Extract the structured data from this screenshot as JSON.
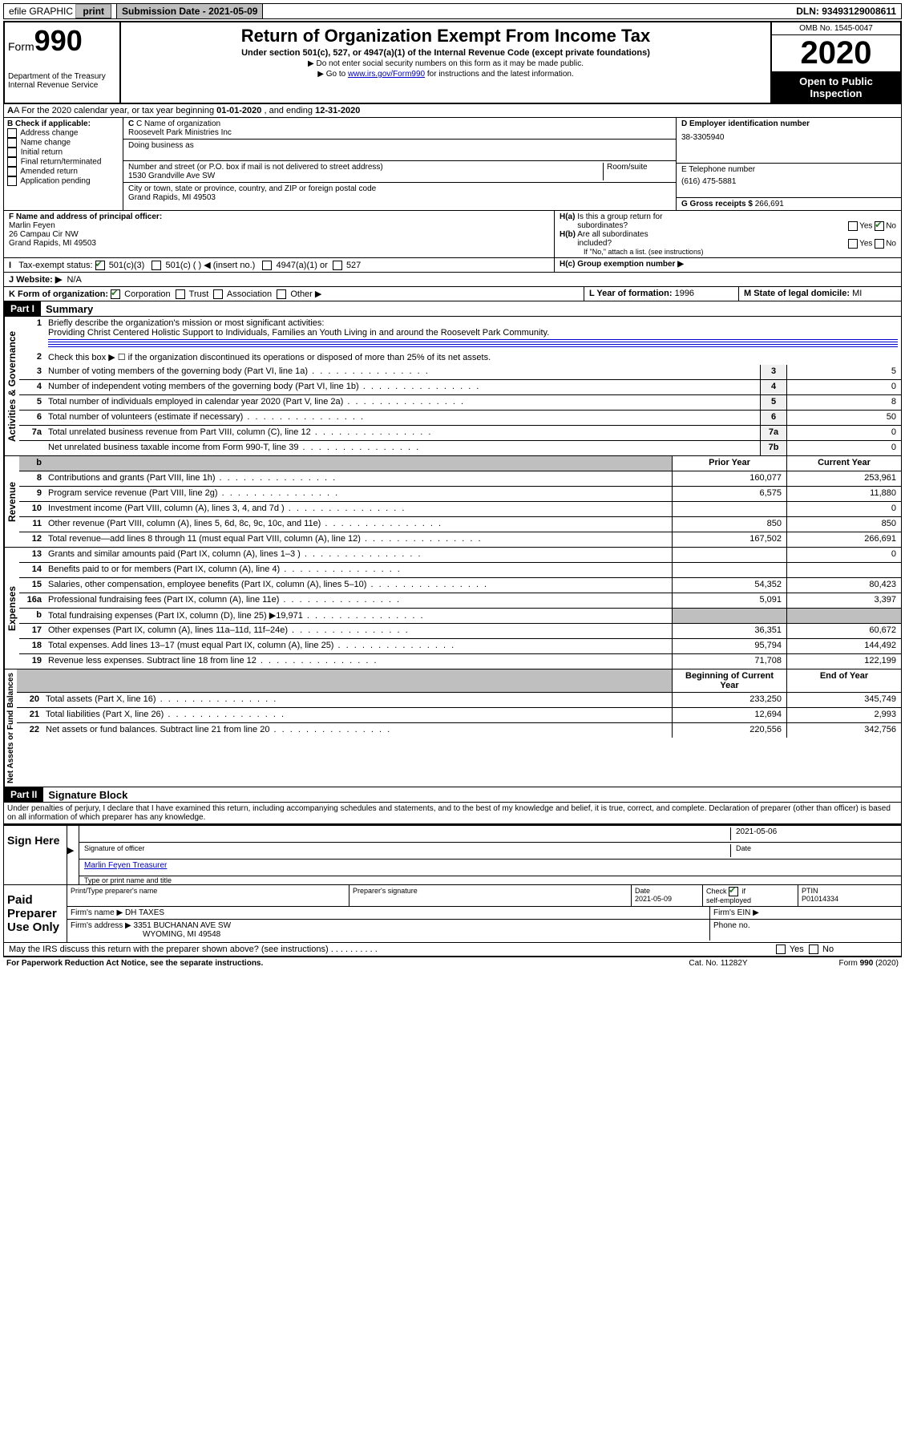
{
  "topbar": {
    "efile": "efile GRAPHIC",
    "print": "print",
    "submission": "Submission Date - 2021-05-09",
    "dln": "DLN: 93493129008611"
  },
  "header": {
    "form_label": "Form",
    "form_number": "990",
    "title": "Return of Organization Exempt From Income Tax",
    "subtitle": "Under section 501(c), 527, or 4947(a)(1) of the Internal Revenue Code (except private foundations)",
    "note1": "▶ Do not enter social security numbers on this form as it may be made public.",
    "note2_pre": "▶ Go to ",
    "note2_link": "www.irs.gov/Form990",
    "note2_post": " for instructions and the latest information.",
    "dept": "Department of the Treasury\nInternal Revenue Service",
    "omb": "OMB No. 1545-0047",
    "year": "2020",
    "open": "Open to Public Inspection"
  },
  "rowA": {
    "text_pre": "A For the 2020 calendar year, or tax year beginning ",
    "begin": "01-01-2020",
    "mid": " , and ending ",
    "end": "12-31-2020"
  },
  "colB": {
    "label": "B Check if applicable:",
    "items": [
      "Address change",
      "Name change",
      "Initial return",
      "Final return/terminated",
      "Amended return",
      "Application pending"
    ]
  },
  "colC": {
    "name_label": "C Name of organization",
    "name": "Roosevelt Park Ministries Inc",
    "dba_label": "Doing business as",
    "addr_label": "Number and street (or P.O. box if mail is not delivered to street address)",
    "room_label": "Room/suite",
    "addr": "1530 Grandville Ave SW",
    "city_label": "City or town, state or province, country, and ZIP or foreign postal code",
    "city": "Grand Rapids, MI  49503"
  },
  "colD": {
    "ein_label": "D Employer identification number",
    "ein": "38-3305940",
    "phone_label": "E Telephone number",
    "phone": "(616) 475-5881",
    "gross_label": "G Gross receipts $",
    "gross": "266,691"
  },
  "rowF": {
    "label": "F  Name and address of principal officer:",
    "name": "Marlin Feyen",
    "addr1": "26 Campau Cir NW",
    "addr2": "Grand Rapids, MI  49503"
  },
  "rowH": {
    "ha_label": "H(a)  Is this a group return for subordinates?",
    "hb_label": "H(b)  Are all subordinates included?",
    "hb_note": "If \"No,\" attach a list. (see instructions)",
    "hc_label": "H(c)  Group exemption number ▶"
  },
  "rowI": {
    "label": "Tax-exempt status:",
    "opt1": "501(c)(3)",
    "opt2": "501(c) (   ) ◀ (insert no.)",
    "opt3": "4947(a)(1) or",
    "opt4": "527"
  },
  "rowJ": {
    "label": "J   Website: ▶",
    "value": "N/A"
  },
  "rowK": {
    "label": "K Form of organization:",
    "corp": "Corporation",
    "trust": "Trust",
    "assoc": "Association",
    "other": "Other ▶"
  },
  "rowL": {
    "label": "L Year of formation:",
    "value": "1996"
  },
  "rowM": {
    "label": "M State of legal domicile:",
    "value": "MI"
  },
  "part1": {
    "header": "Part I",
    "title": "Summary",
    "vlabel1": "Activities & Governance",
    "vlabel2": "Revenue",
    "vlabel3": "Expenses",
    "vlabel4": "Net Assets or Fund Balances",
    "line1_label": "Briefly describe the organization's mission or most significant activities:",
    "line1_text": "Providing Christ Centered Holistic Support to Individuals, Families an Youth Living in and around the Roosevelt Park Community.",
    "line2": "Check this box ▶ ☐  if the organization discontinued its operations or disposed of more than 25% of its net assets.",
    "col_prior": "Prior Year",
    "col_current": "Current Year",
    "col_begin": "Beginning of Current Year",
    "col_end": "End of Year",
    "lines_gov": [
      {
        "n": "3",
        "d": "Number of voting members of the governing body (Part VI, line 1a)",
        "box": "3",
        "v": "5"
      },
      {
        "n": "4",
        "d": "Number of independent voting members of the governing body (Part VI, line 1b)",
        "box": "4",
        "v": "0"
      },
      {
        "n": "5",
        "d": "Total number of individuals employed in calendar year 2020 (Part V, line 2a)",
        "box": "5",
        "v": "8"
      },
      {
        "n": "6",
        "d": "Total number of volunteers (estimate if necessary)",
        "box": "6",
        "v": "50"
      },
      {
        "n": "7a",
        "d": "Total unrelated business revenue from Part VIII, column (C), line 12",
        "box": "7a",
        "v": "0"
      },
      {
        "n": "",
        "d": "Net unrelated business taxable income from Form 990-T, line 39",
        "box": "7b",
        "v": "0"
      }
    ],
    "lines_rev": [
      {
        "n": "8",
        "d": "Contributions and grants (Part VIII, line 1h)",
        "p": "160,077",
        "c": "253,961"
      },
      {
        "n": "9",
        "d": "Program service revenue (Part VIII, line 2g)",
        "p": "6,575",
        "c": "11,880"
      },
      {
        "n": "10",
        "d": "Investment income (Part VIII, column (A), lines 3, 4, and 7d )",
        "p": "",
        "c": "0"
      },
      {
        "n": "11",
        "d": "Other revenue (Part VIII, column (A), lines 5, 6d, 8c, 9c, 10c, and 11e)",
        "p": "850",
        "c": "850"
      },
      {
        "n": "12",
        "d": "Total revenue—add lines 8 through 11 (must equal Part VIII, column (A), line 12)",
        "p": "167,502",
        "c": "266,691"
      }
    ],
    "lines_exp": [
      {
        "n": "13",
        "d": "Grants and similar amounts paid (Part IX, column (A), lines 1–3 )",
        "p": "",
        "c": "0"
      },
      {
        "n": "14",
        "d": "Benefits paid to or for members (Part IX, column (A), line 4)",
        "p": "",
        "c": ""
      },
      {
        "n": "15",
        "d": "Salaries, other compensation, employee benefits (Part IX, column (A), lines 5–10)",
        "p": "54,352",
        "c": "80,423"
      },
      {
        "n": "16a",
        "d": "Professional fundraising fees (Part IX, column (A), line 11e)",
        "p": "5,091",
        "c": "3,397"
      },
      {
        "n": "b",
        "d": "Total fundraising expenses (Part IX, column (D), line 25) ▶19,971",
        "p": "SHADE",
        "c": "SHADE"
      },
      {
        "n": "17",
        "d": "Other expenses (Part IX, column (A), lines 11a–11d, 11f–24e)",
        "p": "36,351",
        "c": "60,672"
      },
      {
        "n": "18",
        "d": "Total expenses. Add lines 13–17 (must equal Part IX, column (A), line 25)",
        "p": "95,794",
        "c": "144,492"
      },
      {
        "n": "19",
        "d": "Revenue less expenses. Subtract line 18 from line 12",
        "p": "71,708",
        "c": "122,199"
      }
    ],
    "lines_net": [
      {
        "n": "20",
        "d": "Total assets (Part X, line 16)",
        "p": "233,250",
        "c": "345,749"
      },
      {
        "n": "21",
        "d": "Total liabilities (Part X, line 26)",
        "p": "12,694",
        "c": "2,993"
      },
      {
        "n": "22",
        "d": "Net assets or fund balances. Subtract line 21 from line 20",
        "p": "220,556",
        "c": "342,756"
      }
    ]
  },
  "part2": {
    "header": "Part II",
    "title": "Signature Block",
    "declaration": "Under penalties of perjury, I declare that I have examined this return, including accompanying schedules and statements, and to the best of my knowledge and belief, it is true, correct, and complete. Declaration of preparer (other than officer) is based on all information of which preparer has any knowledge.",
    "sign_here": "Sign Here",
    "sig_officer": "Signature of officer",
    "sig_date": "2021-05-06",
    "date_label": "Date",
    "name_title": "Marlin Feyen  Treasurer",
    "name_title_label": "Type or print name and title",
    "paid": "Paid Preparer Use Only",
    "prep_name_label": "Print/Type preparer's name",
    "prep_sig_label": "Preparer's signature",
    "prep_date_label": "Date",
    "prep_date": "2021-05-09",
    "check_self": "Check ☑ if self-employed",
    "ptin_label": "PTIN",
    "ptin": "P01014334",
    "firm_name_label": "Firm's name    ▶",
    "firm_name": "DH TAXES",
    "firm_ein_label": "Firm's EIN ▶",
    "firm_addr_label": "Firm's address ▶",
    "firm_addr": "3351 BUCHANAN AVE SW",
    "firm_city": "WYOMING, MI  49548",
    "phone_label": "Phone no.",
    "discuss": "May the IRS discuss this return with the preparer shown above? (see instructions)",
    "yes": "Yes",
    "no": "No"
  },
  "footer": {
    "pra": "For Paperwork Reduction Act Notice, see the separate instructions.",
    "cat": "Cat. No. 11282Y",
    "form": "Form 990 (2020)"
  }
}
